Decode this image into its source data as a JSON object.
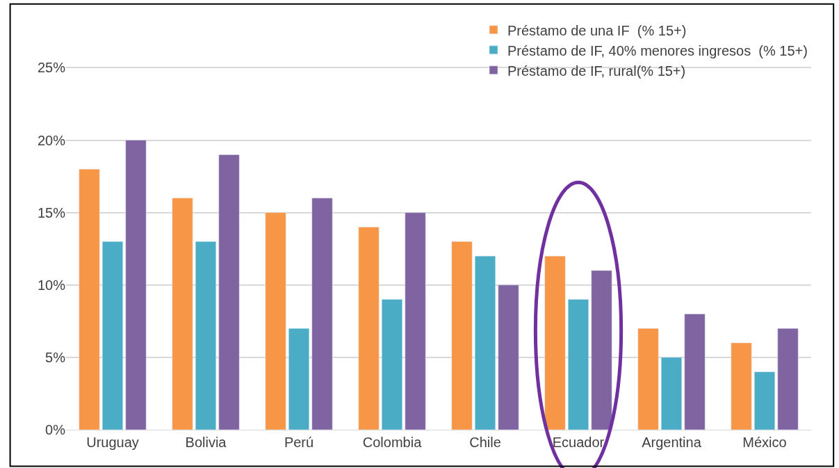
{
  "chart_data": {
    "type": "bar",
    "categories": [
      "Uruguay",
      "Bolivia",
      "Perú",
      "Colombia",
      "Chile",
      "Ecuador",
      "Argentina",
      "México"
    ],
    "series": [
      {
        "name": "Préstamo de una IF  (% 15+)",
        "color": "#f79646",
        "values": [
          18,
          16,
          15,
          14,
          13,
          12,
          7,
          6
        ]
      },
      {
        "name": "Préstamo de IF, 40% menores ingresos  (% 15+)",
        "color": "#4bacc6",
        "values": [
          13,
          13,
          7,
          9,
          12,
          9,
          5,
          4
        ]
      },
      {
        "name": "Préstamo de IF, rural(% 15+)",
        "color": "#8064a2",
        "values": [
          20,
          19,
          16,
          15,
          10,
          11,
          8,
          7
        ]
      }
    ],
    "ylim": [
      0,
      28
    ],
    "yticks": [
      {
        "value": 0,
        "label": "0%"
      },
      {
        "value": 5,
        "label": "5%"
      },
      {
        "value": 10,
        "label": "10%"
      },
      {
        "value": 15,
        "label": "15%"
      },
      {
        "value": 20,
        "label": "20%"
      },
      {
        "value": 25,
        "label": "25%"
      }
    ],
    "grid": "y",
    "legend": "top right"
  }
}
